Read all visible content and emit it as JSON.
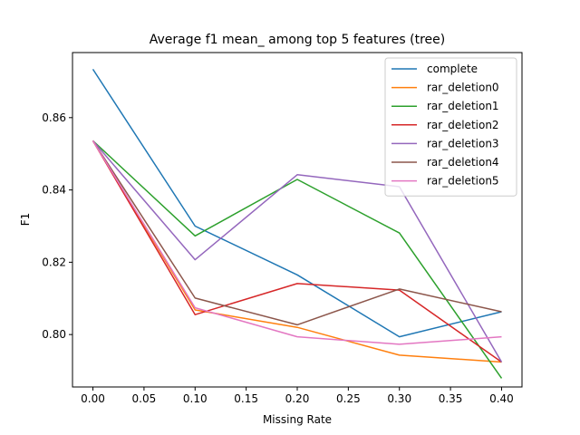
{
  "chart_data": {
    "type": "line",
    "title": "Average f1 mean_ among top 5 features (tree)",
    "xlabel": "Missing Rate",
    "ylabel": "F1",
    "x": [
      0.0,
      0.1,
      0.2,
      0.3,
      0.4
    ],
    "xlim": [
      -0.02,
      0.42
    ],
    "ylim": [
      0.7855,
      0.878
    ],
    "xticks": [
      0.0,
      0.05,
      0.1,
      0.15,
      0.2,
      0.25,
      0.3,
      0.35,
      0.4
    ],
    "xtick_labels": [
      "0.00",
      "0.05",
      "0.10",
      "0.15",
      "0.20",
      "0.25",
      "0.30",
      "0.35",
      "0.40"
    ],
    "yticks": [
      0.8,
      0.82,
      0.84,
      0.86
    ],
    "ytick_labels": [
      "0.80",
      "0.82",
      "0.84",
      "0.86"
    ],
    "grid": false,
    "legend_position": "top-right",
    "series": [
      {
        "name": "complete",
        "color": "#1f77b4",
        "values": [
          0.8734,
          0.83,
          0.8165,
          0.7994,
          0.8063
        ]
      },
      {
        "name": "rar_deletion0",
        "color": "#ff7f0e",
        "values": [
          0.8536,
          0.8068,
          0.802,
          0.7943,
          0.7924
        ]
      },
      {
        "name": "rar_deletion1",
        "color": "#2ca02c",
        "values": [
          0.8536,
          0.8273,
          0.8429,
          0.8281,
          0.7879
        ]
      },
      {
        "name": "rar_deletion2",
        "color": "#d62728",
        "values": [
          0.8536,
          0.8055,
          0.8141,
          0.8123,
          0.7924
        ]
      },
      {
        "name": "rar_deletion3",
        "color": "#9467bd",
        "values": [
          0.8536,
          0.8207,
          0.8442,
          0.8409,
          0.7924
        ]
      },
      {
        "name": "rar_deletion4",
        "color": "#8c564b",
        "values": [
          0.8536,
          0.8101,
          0.8027,
          0.8126,
          0.8063
        ]
      },
      {
        "name": "rar_deletion5",
        "color": "#e377c2",
        "values": [
          0.8536,
          0.8074,
          0.7994,
          0.7973,
          0.7994
        ]
      }
    ]
  }
}
